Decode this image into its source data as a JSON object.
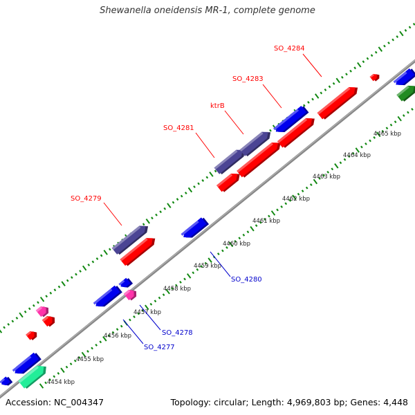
{
  "header": {
    "title": "Shewanella oneidensis MR-1, complete genome"
  },
  "footer": {
    "accession": "Accession: NC_004347",
    "stats": "Topology: circular; Length: 4,969,803 bp; Genes: 4,448"
  },
  "colors": {
    "forward_gene": "#ff0000",
    "reverse_gene": "#0000ee",
    "labeled_forward_gene": "#4b4494",
    "magenta_gene": "#ff33aa",
    "green_gene": "#228b22",
    "teal_gene": "#22ee99",
    "gene_label_forward": "#ff0000",
    "gene_label_reverse": "#0000cc",
    "tick": "#118811",
    "backbone": "#888888",
    "kbp_label": "#222222"
  },
  "ruler": {
    "unit": "kbp",
    "labels": [
      "4454 kbp",
      "4455 kbp",
      "4456 kbp",
      "4457 kbp",
      "4458 kbp",
      "4459 kbp",
      "4460 kbp",
      "4461 kbp",
      "4462 kbp",
      "4463 kbp",
      "4464 kbp",
      "4465 kbp"
    ]
  },
  "gene_labels": {
    "forward": [
      "SO_4279",
      "SO_4281",
      "ktrB",
      "SO_4283",
      "SO_4284"
    ],
    "reverse": [
      "SO_4277",
      "SO_4278",
      "SO_4280"
    ]
  }
}
